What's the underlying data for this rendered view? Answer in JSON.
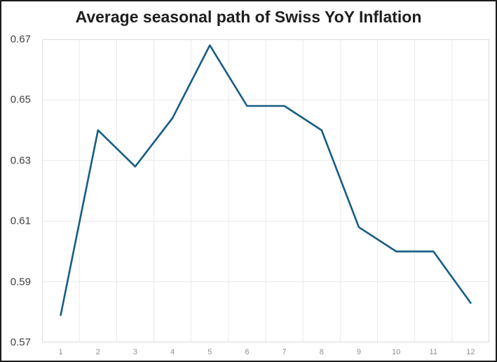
{
  "chart_data": {
    "type": "line",
    "title": "Average seasonal path of Swiss YoY Inflation",
    "categories": [
      "1",
      "2",
      "3",
      "4",
      "5",
      "6",
      "7",
      "8",
      "9",
      "10",
      "11",
      "12"
    ],
    "values": [
      0.579,
      0.64,
      0.628,
      0.644,
      0.668,
      0.648,
      0.648,
      0.64,
      0.608,
      0.6,
      0.6,
      0.583
    ],
    "xlabel": "",
    "ylabel": "",
    "ylim": [
      0.57,
      0.67
    ],
    "yticks": [
      0.57,
      0.59,
      0.61,
      0.63,
      0.65,
      0.67
    ],
    "ytick_labels": [
      "0.57",
      "0.59",
      "0.61",
      "0.63",
      "0.65",
      "0.67"
    ],
    "grid": true,
    "legend": false,
    "line_color": "#165d84",
    "grid_color": "#e9e9e9",
    "plot_border_color": "#dcdcdc"
  }
}
